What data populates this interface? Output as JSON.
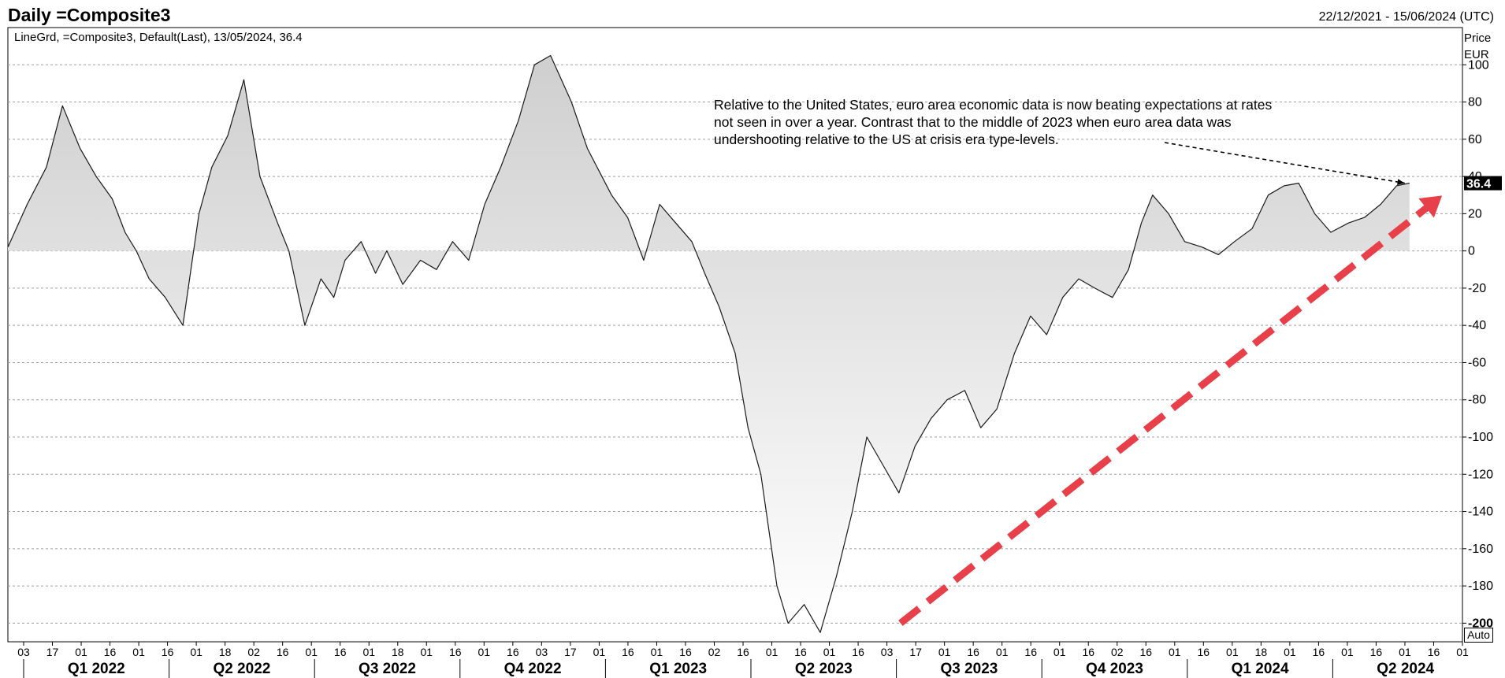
{
  "header": {
    "title": "Daily =Composite3",
    "date_range": "22/12/2021 - 15/06/2024 (UTC)",
    "legend": "LineGrd, =Composite3, Default(Last), 13/05/2024, 36.4",
    "price_label_line1": "Price",
    "price_label_line2": "EUR"
  },
  "annotation": {
    "text": "Relative to the United States, euro area economic data is now beating expectations at rates not seen in over a year. Contrast that to the middle of 2023 when euro area data was undershooting relative to the US at crisis era type-levels."
  },
  "controls": {
    "auto_label": "Auto"
  },
  "last_value_label": "36.4",
  "colors": {
    "line": "#1a1a1a",
    "area_top": "#cfcfcf",
    "area_bottom": "#ffffff",
    "grid": "#a0a0a0",
    "trend_arrow": "#e8404a",
    "last_value_bg": "#000000",
    "last_value_text": "#ffffff"
  },
  "chart_data": {
    "type": "area",
    "series": [
      {
        "x": [
          "2021-12-22",
          "2022-01-03",
          "2022-01-15",
          "2022-01-25",
          "2022-02-05",
          "2022-02-15",
          "2022-02-25",
          "2022-03-05",
          "2022-03-12",
          "2022-03-20",
          "2022-03-30",
          "2022-04-10",
          "2022-04-20",
          "2022-04-28",
          "2022-05-08",
          "2022-05-18",
          "2022-05-28",
          "2022-06-08",
          "2022-06-15",
          "2022-06-25",
          "2022-07-05",
          "2022-07-13",
          "2022-07-20",
          "2022-07-30",
          "2022-08-08",
          "2022-08-15",
          "2022-08-25",
          "2022-09-05",
          "2022-09-15",
          "2022-09-25",
          "2022-10-05",
          "2022-10-15",
          "2022-10-25",
          "2022-11-05",
          "2022-11-15",
          "2022-11-25",
          "2022-12-08",
          "2022-12-18",
          "2023-01-02",
          "2023-01-12",
          "2023-01-22",
          "2023-02-01",
          "2023-02-11",
          "2023-02-21",
          "2023-03-01",
          "2023-03-10",
          "2023-03-20",
          "2023-03-28",
          "2023-04-05",
          "2023-04-15",
          "2023-04-22",
          "2023-05-02",
          "2023-05-12",
          "2023-05-22",
          "2023-06-01",
          "2023-06-10",
          "2023-06-20",
          "2023-06-30",
          "2023-07-10",
          "2023-07-20",
          "2023-07-30",
          "2023-08-10",
          "2023-08-20",
          "2023-08-30",
          "2023-09-10",
          "2023-09-20",
          "2023-09-30",
          "2023-10-10",
          "2023-10-20",
          "2023-10-30",
          "2023-11-10",
          "2023-11-20",
          "2023-11-28",
          "2023-12-05",
          "2023-12-15",
          "2023-12-25",
          "2024-01-05",
          "2024-01-15",
          "2024-01-25",
          "2024-02-05",
          "2024-02-15",
          "2024-02-25",
          "2024-03-05",
          "2024-03-15",
          "2024-03-25",
          "2024-04-05",
          "2024-04-15",
          "2024-04-25",
          "2024-05-05",
          "2024-05-13"
        ],
        "values": [
          2,
          25,
          45,
          78,
          55,
          40,
          28,
          10,
          0,
          -15,
          -25,
          -40,
          20,
          45,
          62,
          92,
          40,
          15,
          0,
          -40,
          -15,
          -25,
          -5,
          5,
          -12,
          0,
          -18,
          -5,
          -10,
          5,
          -5,
          25,
          45,
          70,
          100,
          105,
          80,
          55,
          30,
          18,
          -5,
          25,
          15,
          5,
          -12,
          -30,
          -55,
          -95,
          -120,
          -180,
          -200,
          -190,
          -205,
          -175,
          -140,
          -100,
          -115,
          -130,
          -105,
          -90,
          -80,
          -75,
          -95,
          -85,
          -55,
          -35,
          -45,
          -25,
          -15,
          -20,
          -25,
          -10,
          15,
          30,
          20,
          5,
          2,
          -2,
          5,
          12,
          30,
          35,
          36.4,
          20,
          10,
          15,
          18,
          25,
          35,
          36.4
        ]
      }
    ],
    "xlim": [
      "2021-12-22",
      "2024-06-15"
    ],
    "ylim": [
      -210,
      120
    ],
    "yticks": [
      100,
      80,
      60,
      40,
      20,
      0,
      -20,
      -40,
      -60,
      -80,
      -100,
      -120,
      -140,
      -160,
      -180,
      -200
    ],
    "date_ticks": [
      "03",
      "17",
      "01",
      "16",
      "01",
      "16",
      "01",
      "18",
      "02",
      "16",
      "01",
      "16",
      "01",
      "18",
      "01",
      "16",
      "01",
      "16",
      "03",
      "17",
      "01",
      "16",
      "01",
      "16",
      "02",
      "16",
      "01",
      "16",
      "01",
      "16",
      "03",
      "17",
      "01",
      "16",
      "01",
      "16",
      "01",
      "16",
      "02",
      "16",
      "01",
      "16",
      "01",
      "18",
      "01",
      "16",
      "01",
      "16",
      "01",
      "16",
      "01"
    ],
    "quarters": [
      "Q1 2022",
      "Q2 2022",
      "Q3 2022",
      "Q4 2022",
      "Q1 2023",
      "Q2 2023",
      "Q3 2023",
      "Q4 2023",
      "Q1 2024",
      "Q2 2024"
    ],
    "grid": true,
    "annotation_arrow_target": {
      "x": "2024-05-13",
      "y": 36.4
    },
    "trend_arrow": {
      "from": {
        "x": "2023-07-01",
        "y": -200
      },
      "to": {
        "x": "2024-06-15",
        "y": 25
      }
    }
  }
}
